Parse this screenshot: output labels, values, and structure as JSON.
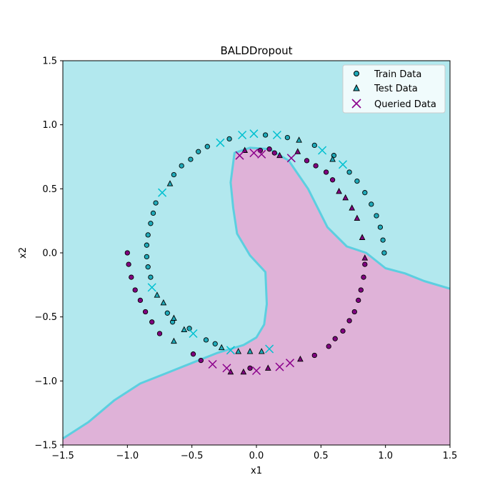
{
  "chart_data": {
    "type": "scatter",
    "title": "BALDDropout",
    "xlabel": "x1",
    "ylabel": "x2",
    "xlim": [
      -1.5,
      1.5
    ],
    "ylim": [
      -1.5,
      1.5
    ],
    "xticks": [
      "-1.5",
      "-1.0",
      "-0.5",
      "0.0",
      "0.5",
      "1.0",
      "1.5"
    ],
    "yticks": [
      "-1.5",
      "-1.0",
      "-0.5",
      "0.0",
      "0.5",
      "1.0",
      "1.5"
    ],
    "grid": false,
    "legend_position": "top-right",
    "colors": {
      "class0_region": "#b2e8ee",
      "class1_region": "#dfb2d8",
      "boundary": "#5ccfe0",
      "class0_marker": "#1fa9b8",
      "class1_marker": "#800080",
      "queried_class0": "#00c0d0",
      "queried_class1": "#8b008b"
    },
    "decision_boundary": {
      "upper_region_label": "class 0 (cyan)",
      "lower_region_label": "class 1 (pink)",
      "boundary_points": [
        [
          -1.5,
          -1.45
        ],
        [
          -1.3,
          -1.32
        ],
        [
          -1.1,
          -1.15
        ],
        [
          -0.9,
          -1.02
        ],
        [
          -0.7,
          -0.94
        ],
        [
          -0.5,
          -0.86
        ],
        [
          -0.3,
          -0.78
        ],
        [
          -0.1,
          -0.72
        ],
        [
          0.0,
          -0.66
        ],
        [
          0.06,
          -0.56
        ],
        [
          0.08,
          -0.4
        ],
        [
          0.07,
          -0.15
        ],
        [
          -0.05,
          -0.02
        ],
        [
          -0.15,
          0.15
        ],
        [
          -0.18,
          0.35
        ],
        [
          -0.2,
          0.55
        ],
        [
          -0.17,
          0.78
        ],
        [
          -0.05,
          0.82
        ],
        [
          0.1,
          0.81
        ],
        [
          0.25,
          0.72
        ],
        [
          0.4,
          0.5
        ],
        [
          0.55,
          0.2
        ],
        [
          0.7,
          0.05
        ],
        [
          0.85,
          0.0
        ],
        [
          1.0,
          -0.12
        ],
        [
          1.15,
          -0.16
        ],
        [
          1.3,
          -0.22
        ],
        [
          1.5,
          -0.28
        ]
      ]
    },
    "series": [
      {
        "name": "Train Data",
        "marker": "circle",
        "class0": [
          [
            -0.78,
            0.39
          ],
          [
            -0.8,
            0.31
          ],
          [
            -0.82,
            0.23
          ],
          [
            -0.84,
            0.14
          ],
          [
            -0.85,
            0.06
          ],
          [
            -0.85,
            -0.03
          ],
          [
            -0.84,
            -0.11
          ],
          [
            -0.82,
            -0.19
          ],
          [
            -0.69,
            -0.47
          ],
          [
            -0.65,
            -0.54
          ],
          [
            -0.52,
            -0.59
          ],
          [
            -0.39,
            -0.68
          ],
          [
            -0.32,
            -0.71
          ],
          [
            -0.64,
            0.61
          ],
          [
            -0.58,
            0.68
          ],
          [
            -0.51,
            0.73
          ],
          [
            -0.45,
            0.79
          ],
          [
            -0.38,
            0.83
          ],
          [
            -0.21,
            0.89
          ],
          [
            0.07,
            0.92
          ],
          [
            0.24,
            0.9
          ],
          [
            0.45,
            0.84
          ],
          [
            0.6,
            0.76
          ],
          [
            0.72,
            0.63
          ],
          [
            0.78,
            0.56
          ],
          [
            0.84,
            0.47
          ],
          [
            0.89,
            0.38
          ],
          [
            0.93,
            0.29
          ],
          [
            0.96,
            0.2
          ],
          [
            0.98,
            0.1
          ],
          [
            0.99,
            0.0
          ]
        ],
        "class1": [
          [
            -1.0,
            0.0
          ],
          [
            -0.99,
            -0.09
          ],
          [
            -0.97,
            -0.19
          ],
          [
            -0.94,
            -0.29
          ],
          [
            -0.9,
            -0.37
          ],
          [
            -0.86,
            -0.46
          ],
          [
            -0.81,
            -0.54
          ],
          [
            -0.75,
            -0.63
          ],
          [
            -0.49,
            -0.79
          ],
          [
            -0.43,
            -0.84
          ],
          [
            -0.05,
            -0.9
          ],
          [
            0.45,
            -0.8
          ],
          [
            0.56,
            -0.73
          ],
          [
            0.61,
            -0.67
          ],
          [
            0.67,
            -0.61
          ],
          [
            0.72,
            -0.53
          ],
          [
            0.76,
            -0.46
          ],
          [
            0.79,
            -0.37
          ],
          [
            0.81,
            -0.29
          ],
          [
            0.83,
            -0.19
          ],
          [
            0.84,
            -0.09
          ],
          [
            0.39,
            0.72
          ],
          [
            0.46,
            0.68
          ],
          [
            0.54,
            0.63
          ],
          [
            0.59,
            0.57
          ],
          [
            0.03,
            0.8
          ],
          [
            0.14,
            0.78
          ],
          [
            0.1,
            0.81
          ]
        ]
      },
      {
        "name": "Test Data",
        "marker": "triangle",
        "class0": [
          [
            -0.77,
            -0.33
          ],
          [
            -0.72,
            -0.39
          ],
          [
            -0.64,
            -0.51
          ],
          [
            -0.56,
            -0.6
          ],
          [
            -0.64,
            -0.69
          ],
          [
            -0.27,
            -0.74
          ],
          [
            -0.14,
            -0.77
          ],
          [
            -0.05,
            -0.77
          ],
          [
            0.04,
            -0.77
          ],
          [
            -0.67,
            0.54
          ],
          [
            0.33,
            0.88
          ],
          [
            0.59,
            0.73
          ]
        ],
        "class1": [
          [
            -0.2,
            -0.93
          ],
          [
            -0.1,
            -0.93
          ],
          [
            0.09,
            -0.9
          ],
          [
            0.34,
            -0.83
          ],
          [
            -0.09,
            0.8
          ],
          [
            0.18,
            0.76
          ],
          [
            0.32,
            0.79
          ],
          [
            0.64,
            0.48
          ],
          [
            0.69,
            0.43
          ],
          [
            0.74,
            0.35
          ],
          [
            0.78,
            0.27
          ],
          [
            0.82,
            0.12
          ],
          [
            0.84,
            -0.04
          ]
        ]
      },
      {
        "name": "Queried Data",
        "marker": "x",
        "class0": [
          [
            -0.73,
            0.47
          ],
          [
            -0.81,
            -0.27
          ],
          [
            -0.49,
            -0.63
          ],
          [
            -0.2,
            -0.76
          ],
          [
            0.1,
            -0.75
          ],
          [
            -0.28,
            0.86
          ],
          [
            -0.11,
            0.92
          ],
          [
            -0.02,
            0.93
          ],
          [
            0.16,
            0.92
          ],
          [
            0.51,
            0.8
          ],
          [
            0.67,
            0.69
          ]
        ],
        "class1": [
          [
            -0.13,
            0.76
          ],
          [
            -0.02,
            0.78
          ],
          [
            0.04,
            0.77
          ],
          [
            0.27,
            0.74
          ],
          [
            -0.34,
            -0.87
          ],
          [
            -0.23,
            -0.9
          ],
          [
            0.0,
            -0.92
          ],
          [
            0.18,
            -0.89
          ],
          [
            0.26,
            -0.86
          ]
        ]
      }
    ]
  }
}
